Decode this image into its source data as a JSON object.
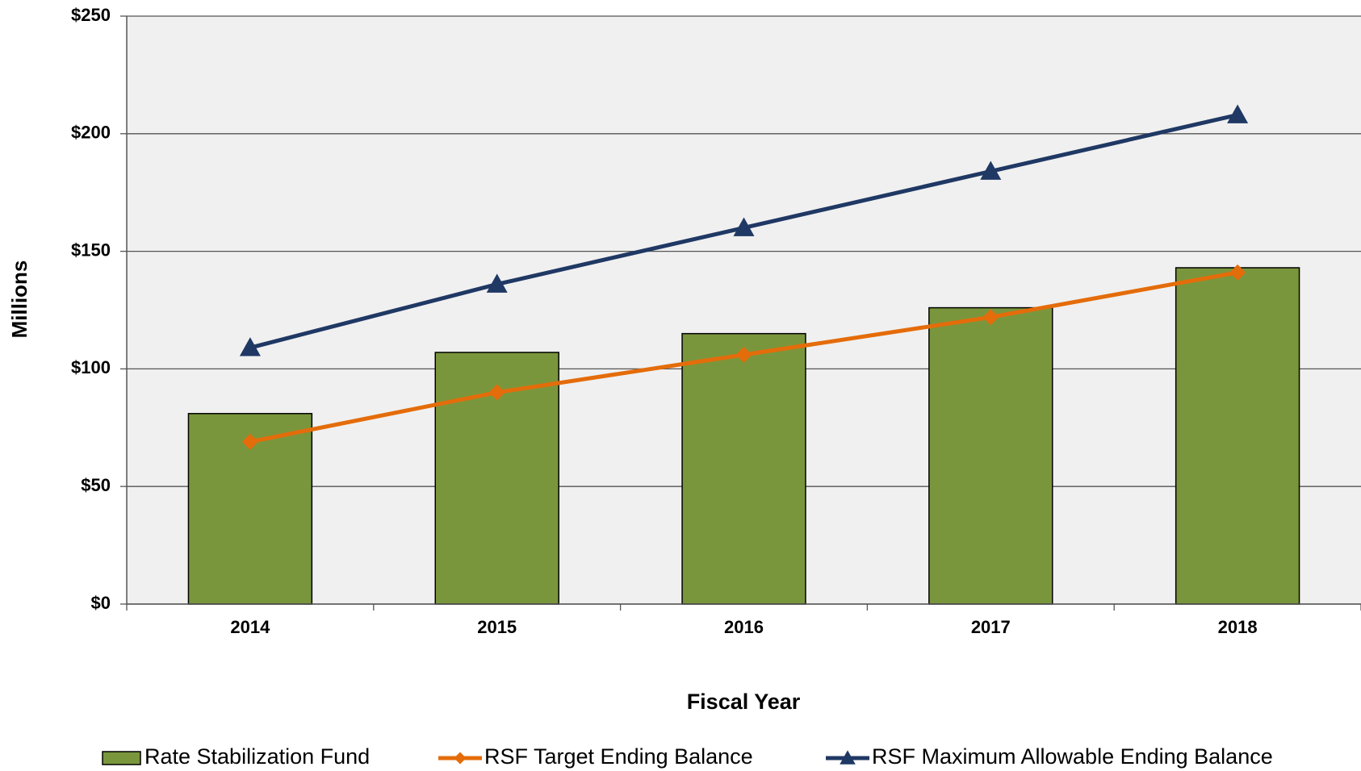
{
  "chart_data": {
    "type": "bar_line",
    "x_label": "Fiscal Year",
    "y_label": "Millions",
    "categories": [
      "2014",
      "2015",
      "2016",
      "2017",
      "2018"
    ],
    "series": [
      {
        "name": "Rate Stabilization Fund",
        "type": "bar",
        "color": "#7a963d",
        "values": [
          81,
          107,
          115,
          126,
          143
        ]
      },
      {
        "name": "RSF Target Ending Balance",
        "type": "line",
        "marker": "diamond",
        "color": "#e46c0a",
        "values": [
          69,
          90,
          106,
          122,
          141
        ]
      },
      {
        "name": "RSF Maximum Allowable Ending Balance",
        "type": "line",
        "marker": "triangle",
        "color": "#1f3864",
        "values": [
          109,
          136,
          160,
          184,
          208
        ]
      }
    ],
    "ylim": [
      0,
      250
    ],
    "yticks": [
      {
        "value": 0,
        "label": "$0"
      },
      {
        "value": 50,
        "label": "$50"
      },
      {
        "value": 100,
        "label": "$100"
      },
      {
        "value": 150,
        "label": "$150"
      },
      {
        "value": 200,
        "label": "$200"
      },
      {
        "value": 250,
        "label": "$250"
      }
    ],
    "grid": true,
    "legend": "bottom"
  }
}
